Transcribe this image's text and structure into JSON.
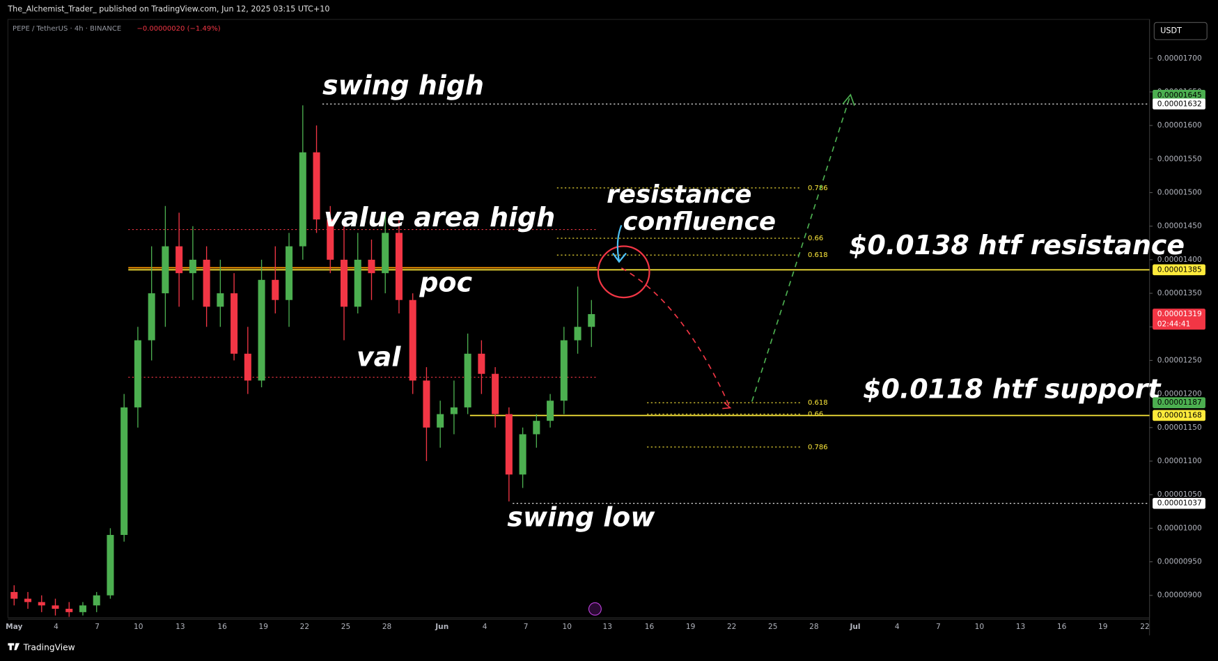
{
  "header": {
    "publisher_line": "The_Alchemist_Trader_ published on TradingView.com, Jun 12, 2025 03:15 UTC+10"
  },
  "footer": {
    "brand": "TradingView"
  },
  "chart_data": {
    "type": "candlestick",
    "symbol": "PEPE / TetherUS · 4h · BINANCE",
    "change": "−0.00000020 (−1.49%)",
    "currency": "USDT",
    "up_color": "#4caf50",
    "down_color": "#f23645",
    "x_labels": [
      "May",
      "4",
      "7",
      "10",
      "13",
      "16",
      "19",
      "22",
      "25",
      "28",
      "Jun",
      "4",
      "7",
      "10",
      "13",
      "16",
      "19",
      "22",
      "25",
      "28",
      "Jul",
      "4",
      "7",
      "10",
      "13",
      "16",
      "19",
      "22"
    ],
    "candles": [
      [
        9.05e-06,
        9.15e-06,
        8.85e-06,
        8.95e-06
      ],
      [
        8.95e-06,
        9.05e-06,
        8.8e-06,
        8.9e-06
      ],
      [
        8.9e-06,
        9e-06,
        8.75e-06,
        8.85e-06
      ],
      [
        8.85e-06,
        8.95e-06,
        8.7e-06,
        8.8e-06
      ],
      [
        8.8e-06,
        8.9e-06,
        8.68e-06,
        8.75e-06
      ],
      [
        8.75e-06,
        8.9e-06,
        8.7e-06,
        8.85e-06
      ],
      [
        8.85e-06,
        9.05e-06,
        8.75e-06,
        9e-06
      ],
      [
        9e-06,
        1e-05,
        8.95e-06,
        9.9e-06
      ],
      [
        9.9e-06,
        1.2e-05,
        9.8e-06,
        1.18e-05
      ],
      [
        1.18e-05,
        1.3e-05,
        1.15e-05,
        1.28e-05
      ],
      [
        1.28e-05,
        1.42e-05,
        1.25e-05,
        1.35e-05
      ],
      [
        1.35e-05,
        1.48e-05,
        1.3e-05,
        1.42e-05
      ],
      [
        1.42e-05,
        1.47e-05,
        1.33e-05,
        1.38e-05
      ],
      [
        1.38e-05,
        1.45e-05,
        1.34e-05,
        1.4e-05
      ],
      [
        1.4e-05,
        1.42e-05,
        1.3e-05,
        1.33e-05
      ],
      [
        1.33e-05,
        1.4e-05,
        1.3e-05,
        1.35e-05
      ],
      [
        1.35e-05,
        1.38e-05,
        1.25e-05,
        1.26e-05
      ],
      [
        1.26e-05,
        1.3e-05,
        1.2e-05,
        1.22e-05
      ],
      [
        1.22e-05,
        1.4e-05,
        1.21e-05,
        1.37e-05
      ],
      [
        1.37e-05,
        1.42e-05,
        1.32e-05,
        1.34e-05
      ],
      [
        1.34e-05,
        1.44e-05,
        1.3e-05,
        1.42e-05
      ],
      [
        1.42e-05,
        1.63e-05,
        1.4e-05,
        1.56e-05
      ],
      [
        1.56e-05,
        1.6e-05,
        1.44e-05,
        1.46e-05
      ],
      [
        1.46e-05,
        1.48e-05,
        1.38e-05,
        1.4e-05
      ],
      [
        1.4e-05,
        1.45e-05,
        1.28e-05,
        1.33e-05
      ],
      [
        1.33e-05,
        1.44e-05,
        1.32e-05,
        1.4e-05
      ],
      [
        1.4e-05,
        1.43e-05,
        1.34e-05,
        1.38e-05
      ],
      [
        1.38e-05,
        1.47e-05,
        1.35e-05,
        1.44e-05
      ],
      [
        1.44e-05,
        1.46e-05,
        1.32e-05,
        1.34e-05
      ],
      [
        1.34e-05,
        1.35e-05,
        1.2e-05,
        1.22e-05
      ],
      [
        1.22e-05,
        1.24e-05,
        1.1e-05,
        1.15e-05
      ],
      [
        1.15e-05,
        1.19e-05,
        1.12e-05,
        1.17e-05
      ],
      [
        1.17e-05,
        1.22e-05,
        1.14e-05,
        1.18e-05
      ],
      [
        1.18e-05,
        1.29e-05,
        1.17e-05,
        1.26e-05
      ],
      [
        1.26e-05,
        1.28e-05,
        1.2e-05,
        1.23e-05
      ],
      [
        1.23e-05,
        1.24e-05,
        1.15e-05,
        1.17e-05
      ],
      [
        1.17e-05,
        1.18e-05,
        1.04e-05,
        1.08e-05
      ],
      [
        1.08e-05,
        1.15e-05,
        1.06e-05,
        1.14e-05
      ],
      [
        1.14e-05,
        1.17e-05,
        1.12e-05,
        1.16e-05
      ],
      [
        1.16e-05,
        1.2e-05,
        1.15e-05,
        1.19e-05
      ],
      [
        1.19e-05,
        1.3e-05,
        1.17e-05,
        1.28e-05
      ],
      [
        1.28e-05,
        1.36e-05,
        1.26e-05,
        1.3e-05
      ],
      [
        1.3e-05,
        1.34e-05,
        1.27e-05,
        1.319e-05
      ]
    ],
    "ylim": [
      8.67e-06,
      1.758e-05
    ],
    "yticks": [
      {
        "value": 1.7e-05,
        "label": "0.00001700"
      },
      {
        "value": 1.65e-05,
        "label": "0.00001650"
      },
      {
        "value": 1.6e-05,
        "label": "0.00001600"
      },
      {
        "value": 1.55e-05,
        "label": "0.00001550"
      },
      {
        "value": 1.5e-05,
        "label": "0.00001500"
      },
      {
        "value": 1.45e-05,
        "label": "0.00001450"
      },
      {
        "value": 1.4e-05,
        "label": "0.00001400"
      },
      {
        "value": 1.35e-05,
        "label": "0.00001350"
      },
      {
        "value": 1.3e-05,
        "label": "0.00001300"
      },
      {
        "value": 1.25e-05,
        "label": "0.00001250"
      },
      {
        "value": 1.2e-05,
        "label": "0.00001200"
      },
      {
        "value": 1.15e-05,
        "label": "0.00001150"
      },
      {
        "value": 1.1e-05,
        "label": "0.00001100"
      },
      {
        "value": 1.05e-05,
        "label": "0.00001050"
      },
      {
        "value": 1e-05,
        "label": "0.00001000"
      },
      {
        "value": 9.5e-06,
        "label": "0.00000950"
      },
      {
        "value": 9e-06,
        "label": "0.00000900"
      }
    ],
    "levels": [
      {
        "value": 1.632e-05,
        "color": "#ffffff",
        "style": "dotted"
      },
      {
        "value": 1.037e-05,
        "color": "#ffffff",
        "style": "dotted"
      },
      {
        "value": 1.445e-05,
        "color": "#f23645",
        "style": "dotted"
      },
      {
        "value": 1.225e-05,
        "color": "#f23645",
        "style": "dotted"
      },
      {
        "value": 1.385e-05,
        "color": "#ffeb3b",
        "style": "solid"
      },
      {
        "value": 1.168e-05,
        "color": "#ffeb3b",
        "style": "solid"
      },
      {
        "value": 1.388e-05,
        "color": "#ff9800",
        "style": "solid"
      }
    ],
    "fib_upper": [
      {
        "ratio": 0.786,
        "price": 1.507e-05
      },
      {
        "ratio": 0.66,
        "price": 1.432e-05
      },
      {
        "ratio": 0.618,
        "price": 1.407e-05
      }
    ],
    "fib_lower": [
      {
        "ratio": 0.618,
        "price": 1.187e-05
      },
      {
        "ratio": 0.66,
        "price": 1.17e-05
      },
      {
        "ratio": 0.786,
        "price": 1.121e-05
      }
    ],
    "price_labels": [
      {
        "value": 1.645e-05,
        "color": "#4caf50",
        "text_color": "#000000"
      },
      {
        "value": 1.632e-05,
        "color": "#ffffff",
        "text_color": "#000000"
      },
      {
        "value": 1.385e-05,
        "color": "#ffeb3b",
        "text_color": "#000000"
      },
      {
        "value": 1.319e-05,
        "color": "#f23645",
        "text_color": "#ffffff",
        "countdown": "02:44:41"
      },
      {
        "value": 1.187e-05,
        "color": "#4caf50",
        "text_color": "#000000"
      },
      {
        "value": 1.168e-05,
        "color": "#ffeb3b",
        "text_color": "#000000"
      },
      {
        "value": 1.037e-05,
        "color": "#ffffff",
        "text_color": "#000000"
      }
    ],
    "annotations": [
      "swing high",
      "value area high",
      "resistance",
      "confluence",
      "$0.0138 htf resistance",
      "poc",
      "val",
      "$0.0118 htf support",
      "swing low"
    ]
  }
}
